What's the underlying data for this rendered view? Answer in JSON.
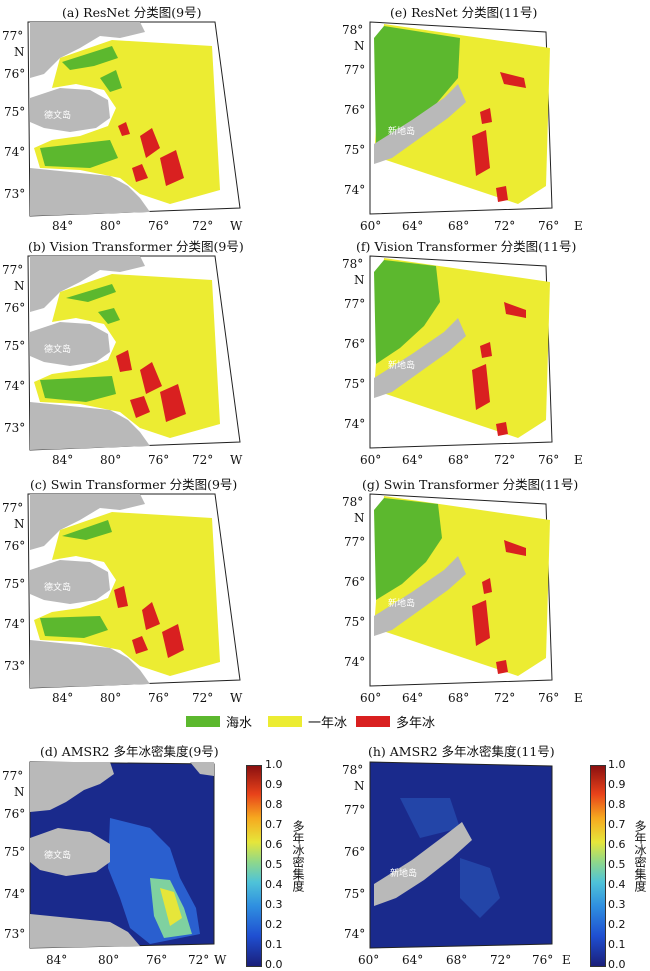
{
  "panels": {
    "a": {
      "title": "(a) ResNet 分类图(9号)"
    },
    "b": {
      "title": "(b) Vision Transformer 分类图(9号)"
    },
    "c": {
      "title": "(c) Swin Transformer 分类图(9号)"
    },
    "d": {
      "title": "(d) AMSR2 多年冰密集度(9号)"
    },
    "e": {
      "title": "(e) ResNet 分类图(11号)"
    },
    "f": {
      "title": "(f) Vision Transformer 分类图(11号)"
    },
    "g": {
      "title": "(g) Swin Transformer 分类图(11号)"
    },
    "h": {
      "title": "(h) AMSR2 多年冰密集度(11号)"
    }
  },
  "left_axes": {
    "lat": [
      "77°",
      "76°",
      "75°",
      "74°",
      "73°"
    ],
    "n_label": "N",
    "lon": [
      "84°",
      "80°",
      "76°",
      "72°"
    ],
    "dir_label": "W",
    "island": "德文岛"
  },
  "right_axes": {
    "lat": [
      "78°",
      "77°",
      "76°",
      "75°",
      "74°"
    ],
    "n_label": "N",
    "lon": [
      "60°",
      "64°",
      "68°",
      "72°",
      "76°"
    ],
    "dir_label": "E",
    "island": "新地岛"
  },
  "legend": [
    {
      "label": "海水",
      "color": "#5cb82e"
    },
    {
      "label": "一年冰",
      "color": "#ecec32"
    },
    {
      "label": "多年冰",
      "color": "#d92020"
    }
  ],
  "colorbar": {
    "ticks": [
      "1.0",
      "0.9",
      "0.8",
      "0.7",
      "0.6",
      "0.5",
      "0.4",
      "0.3",
      "0.2",
      "0.1",
      "0.0"
    ],
    "title": "多年冰密集度"
  },
  "colors": {
    "land": "#b9b9b9",
    "ocean_low": "#1a2a8c",
    "water": "#5cb82e",
    "first_year_ice": "#ecec32",
    "multi_year_ice": "#d92020"
  }
}
